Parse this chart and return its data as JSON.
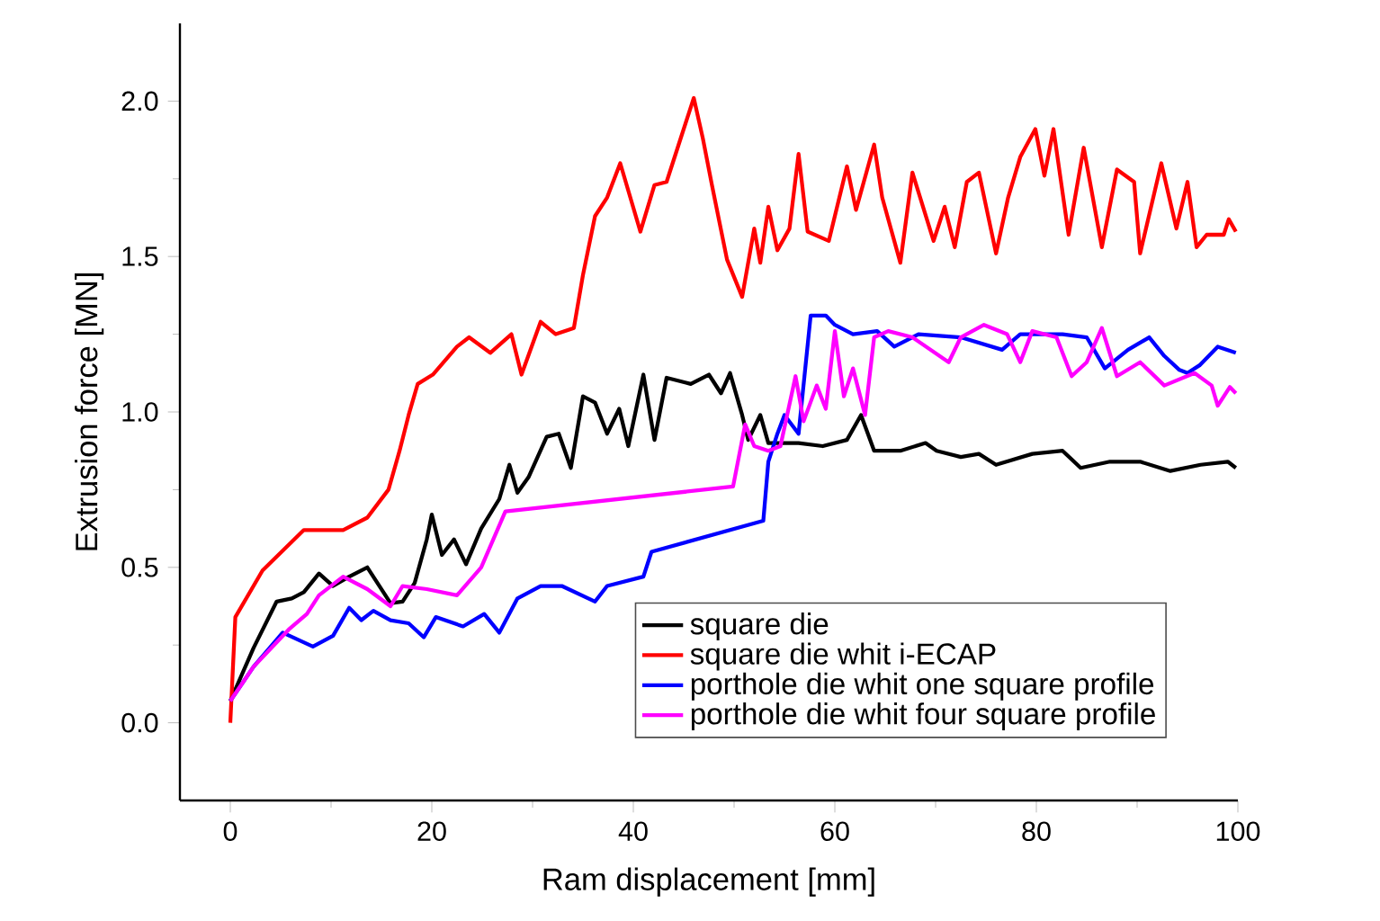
{
  "chart_data": {
    "type": "line",
    "xlabel": "Ram displacement [mm]",
    "ylabel": "Extrusion force [MN]",
    "xlim": [
      -5,
      100
    ],
    "ylim": [
      -0.25,
      2.25
    ],
    "xticks": [
      0,
      20,
      40,
      60,
      80,
      100
    ],
    "yticks": [
      {
        "value": 0,
        "label": "0.0"
      },
      {
        "value": 0.5,
        "label": "0.5"
      },
      {
        "value": 1,
        "label": "1.0"
      },
      {
        "value": 1.5,
        "label": "1.5"
      },
      {
        "value": 2,
        "label": "2.0"
      }
    ],
    "legend": "bottom right",
    "series": [
      {
        "name": "square die",
        "color": "#000000",
        "x": [
          0,
          2.3,
          4.6,
          6.1,
          7.3,
          8.8,
          10.2,
          11.8,
          13.6,
          15.9,
          17.1,
          18.3,
          19.5,
          20,
          21,
          22.2,
          23.4,
          24.9,
          26.7,
          27.7,
          28.5,
          29.6,
          31.4,
          32.6,
          33.8,
          35,
          36.2,
          37.4,
          38.6,
          39.5,
          41,
          42.1,
          43.3,
          45.7,
          47.5,
          48.7,
          49.6,
          50.8,
          51.4,
          52.6,
          53.4,
          56.4,
          58.8,
          61.2,
          62.6,
          63.9,
          66.5,
          69,
          70.1,
          72.5,
          74.3,
          76,
          79.6,
          82.6,
          84.4,
          87.3,
          90.3,
          93.3,
          96.3,
          99,
          99.8
        ],
        "values": [
          0.07,
          0.24,
          0.39,
          0.4,
          0.42,
          0.48,
          0.44,
          0.47,
          0.5,
          0.385,
          0.39,
          0.45,
          0.59,
          0.67,
          0.54,
          0.59,
          0.51,
          0.625,
          0.72,
          0.83,
          0.74,
          0.79,
          0.92,
          0.93,
          0.82,
          1.05,
          1.03,
          0.93,
          1.01,
          0.89,
          1.12,
          0.91,
          1.11,
          1.09,
          1.12,
          1.06,
          1.125,
          0.99,
          0.91,
          0.99,
          0.9,
          0.9,
          0.89,
          0.91,
          0.99,
          0.875,
          0.875,
          0.9,
          0.875,
          0.855,
          0.865,
          0.83,
          0.865,
          0.875,
          0.82,
          0.84,
          0.84,
          0.81,
          0.83,
          0.84,
          0.82
        ]
      },
      {
        "name": "square die whit i-ECAP",
        "color": "#ff0000",
        "x": [
          0,
          0.5,
          3.2,
          7.3,
          11.2,
          13.6,
          15.7,
          16.8,
          17.7,
          18.6,
          20.1,
          22.5,
          23.7,
          25.8,
          27.9,
          28.9,
          30.8,
          32.3,
          34.1,
          35,
          36.2,
          37.4,
          38.7,
          40.7,
          42.1,
          43.3,
          44.5,
          46,
          46.9,
          47.8,
          49.3,
          50.8,
          52,
          52.6,
          53.4,
          54.3,
          55.5,
          56.4,
          57.3,
          59.4,
          61.2,
          62.1,
          63.9,
          64.7,
          66.5,
          67.7,
          69.8,
          70.9,
          71.9,
          73.1,
          74.3,
          76,
          77.2,
          78.4,
          79.9,
          80.8,
          81.7,
          83.2,
          84.7,
          86.5,
          88,
          89.7,
          90.3,
          92.4,
          93.9,
          95,
          95.9,
          96.9,
          98.6,
          99.1,
          99.8
        ],
        "values": [
          0,
          0.34,
          0.49,
          0.62,
          0.62,
          0.66,
          0.75,
          0.875,
          0.99,
          1.09,
          1.12,
          1.21,
          1.24,
          1.19,
          1.25,
          1.12,
          1.29,
          1.25,
          1.27,
          1.44,
          1.63,
          1.69,
          1.8,
          1.58,
          1.73,
          1.74,
          1.86,
          2.01,
          1.88,
          1.73,
          1.49,
          1.37,
          1.59,
          1.48,
          1.66,
          1.52,
          1.59,
          1.83,
          1.58,
          1.55,
          1.79,
          1.65,
          1.86,
          1.69,
          1.48,
          1.77,
          1.55,
          1.66,
          1.53,
          1.74,
          1.77,
          1.51,
          1.69,
          1.82,
          1.91,
          1.76,
          1.91,
          1.57,
          1.85,
          1.53,
          1.78,
          1.74,
          1.51,
          1.8,
          1.59,
          1.74,
          1.53,
          1.57,
          1.57,
          1.62,
          1.58
        ]
      },
      {
        "name": "porthole die whit one  square profile",
        "color": "#0000ff",
        "x": [
          0,
          2.3,
          5.2,
          8.2,
          10.2,
          11.8,
          13,
          14.2,
          15.9,
          17.7,
          19.2,
          20.4,
          23.1,
          25.2,
          26.7,
          28.5,
          30.8,
          32.9,
          36.2,
          37.4,
          41,
          41.8,
          52.9,
          53.4,
          54.3,
          55,
          56.4,
          57.6,
          59.1,
          60,
          61.8,
          64.2,
          65.9,
          68.3,
          72.5,
          76.6,
          78.4,
          82.6,
          85,
          86.8,
          89.1,
          91.2,
          92.7,
          94.2,
          95,
          96.2,
          98,
          99.8
        ],
        "values": [
          0.07,
          0.18,
          0.29,
          0.245,
          0.28,
          0.37,
          0.33,
          0.36,
          0.33,
          0.32,
          0.275,
          0.34,
          0.31,
          0.35,
          0.29,
          0.4,
          0.44,
          0.44,
          0.39,
          0.44,
          0.47,
          0.55,
          0.65,
          0.84,
          0.93,
          0.99,
          0.93,
          1.31,
          1.31,
          1.28,
          1.25,
          1.26,
          1.21,
          1.25,
          1.24,
          1.2,
          1.25,
          1.25,
          1.24,
          1.14,
          1.2,
          1.24,
          1.18,
          1.135,
          1.125,
          1.15,
          1.21,
          1.19
        ]
      },
      {
        "name": "porthole die whit four  square profile",
        "color": "#ff00ff",
        "x": [
          0,
          2.3,
          5.8,
          7.6,
          8.8,
          11.2,
          13.6,
          15.9,
          17.1,
          19.5,
          22.5,
          24.9,
          27.3,
          49.9,
          51.1,
          52,
          53.4,
          54.6,
          56.1,
          56.9,
          58.2,
          59.1,
          60,
          60.9,
          61.8,
          63,
          63.9,
          65.3,
          67.7,
          71.3,
          72.5,
          74.8,
          77.1,
          78.4,
          79.6,
          82,
          83.5,
          85,
          86.5,
          88,
          90.3,
          92.7,
          95.7,
          97.4,
          98,
          99.2,
          99.8
        ],
        "values": [
          0.07,
          0.18,
          0.3,
          0.35,
          0.41,
          0.47,
          0.43,
          0.375,
          0.44,
          0.43,
          0.41,
          0.5,
          0.68,
          0.76,
          0.96,
          0.89,
          0.875,
          0.89,
          1.115,
          0.97,
          1.085,
          1.01,
          1.26,
          1.05,
          1.14,
          0.99,
          1.24,
          1.26,
          1.24,
          1.16,
          1.24,
          1.28,
          1.25,
          1.16,
          1.26,
          1.24,
          1.115,
          1.16,
          1.27,
          1.115,
          1.16,
          1.085,
          1.125,
          1.085,
          1.02,
          1.08,
          1.06
        ]
      }
    ]
  }
}
